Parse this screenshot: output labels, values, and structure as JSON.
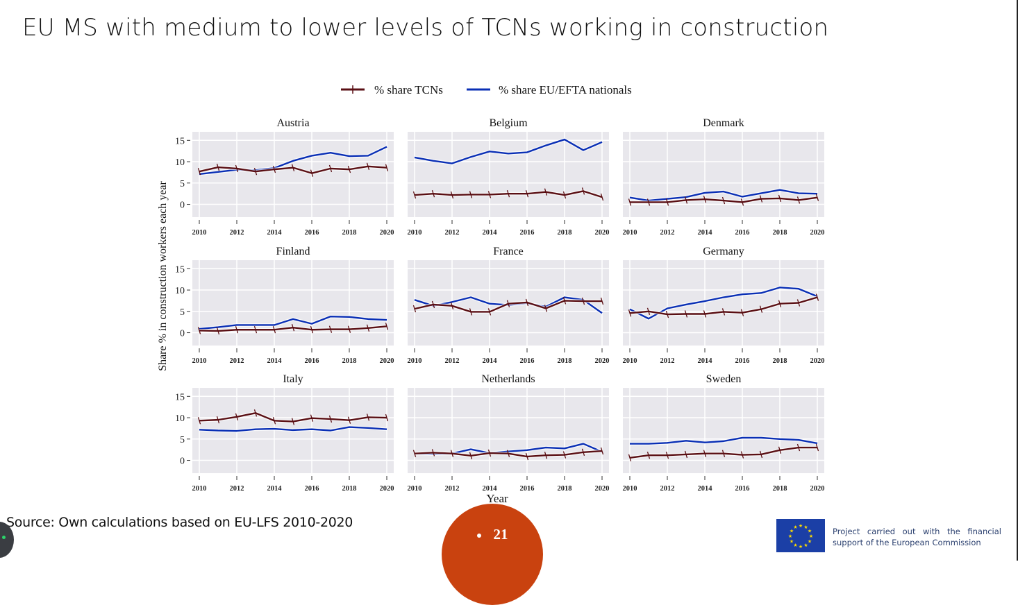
{
  "slide": {
    "title": "EU MS with medium to lower levels of TCNs working in construction",
    "source": "Source: Own calculations based on EU-LFS 2010-2020",
    "page_number": "21",
    "funding_text": "Project carried out with the financial support of the European Commission",
    "colors": {
      "page_badge": "#c9420f",
      "eu_flag": "#1b3fa6",
      "eu_stars": "#ffdd00"
    }
  },
  "chart_data": {
    "type": "line",
    "layout": "small-multiples 3x3",
    "xlabel": "Year",
    "ylabel": "Share % in construction workers each year",
    "x": [
      2010,
      2011,
      2012,
      2013,
      2014,
      2015,
      2016,
      2017,
      2018,
      2019,
      2020
    ],
    "x_ticks": [
      "2010",
      "2012",
      "2014",
      "2016",
      "2018",
      "2020"
    ],
    "y_ticks": [
      "0",
      "5",
      "10",
      "15"
    ],
    "ylim": [
      -3,
      17
    ],
    "grid": true,
    "legend": {
      "placement": "top-center",
      "entries": [
        {
          "key": "tcn",
          "label": "% share TCNs",
          "color": "#5a0f14",
          "marker": "+"
        },
        {
          "key": "eu",
          "label": "% share EU/EFTA nationals",
          "color": "#0a2fb5",
          "marker": "none"
        }
      ]
    },
    "panels": [
      {
        "title": "Austria",
        "tcn": [
          7.7,
          8.7,
          8.4,
          7.7,
          8.2,
          8.6,
          7.3,
          8.4,
          8.2,
          8.9,
          8.6
        ],
        "eu": [
          7.1,
          7.6,
          8.1,
          8.0,
          8.5,
          10.2,
          11.4,
          12.1,
          11.3,
          11.4,
          13.5
        ]
      },
      {
        "title": "Belgium",
        "tcn": [
          2.2,
          2.5,
          2.2,
          2.3,
          2.3,
          2.5,
          2.5,
          2.9,
          2.2,
          3.1,
          1.7
        ],
        "eu": [
          11.0,
          10.2,
          9.6,
          11.1,
          12.4,
          11.9,
          12.2,
          13.8,
          15.2,
          12.7,
          14.6
        ]
      },
      {
        "title": "Denmark",
        "tcn": [
          0.5,
          0.5,
          0.5,
          1.0,
          1.2,
          0.9,
          0.5,
          1.3,
          1.4,
          1.0,
          1.6
        ],
        "eu": [
          1.6,
          0.9,
          1.3,
          1.7,
          2.7,
          3.0,
          1.8,
          2.6,
          3.4,
          2.6,
          2.5
        ]
      },
      {
        "title": "Finland",
        "tcn": [
          0.5,
          0.4,
          0.7,
          0.7,
          0.7,
          1.2,
          0.7,
          0.8,
          0.8,
          1.1,
          1.5
        ],
        "eu": [
          0.9,
          1.3,
          1.8,
          1.8,
          1.8,
          3.2,
          2.1,
          3.8,
          3.7,
          3.2,
          3.0
        ]
      },
      {
        "title": "France",
        "tcn": [
          5.6,
          6.6,
          6.3,
          4.9,
          4.9,
          6.8,
          7.1,
          5.7,
          7.5,
          7.4,
          7.4
        ],
        "eu": [
          7.7,
          6.3,
          7.2,
          8.3,
          6.8,
          6.5,
          6.9,
          6.1,
          8.3,
          7.7,
          4.6
        ]
      },
      {
        "title": "Germany",
        "tcn": [
          4.6,
          5.0,
          4.3,
          4.4,
          4.4,
          4.9,
          4.7,
          5.5,
          6.8,
          7.0,
          8.3
        ],
        "eu": [
          5.5,
          3.3,
          5.7,
          6.6,
          7.4,
          8.3,
          9.0,
          9.3,
          10.6,
          10.3,
          8.5
        ]
      },
      {
        "title": "Italy",
        "tcn": [
          9.3,
          9.5,
          10.2,
          11.1,
          9.3,
          9.1,
          9.9,
          9.7,
          9.4,
          10.1,
          10.0
        ],
        "eu": [
          7.2,
          7.0,
          6.9,
          7.3,
          7.4,
          7.1,
          7.3,
          7.0,
          7.8,
          7.6,
          7.3
        ]
      },
      {
        "title": "Netherlands",
        "tcn": [
          1.6,
          1.8,
          1.6,
          1.1,
          1.7,
          1.6,
          0.9,
          1.2,
          1.3,
          1.9,
          2.2
        ],
        "eu": [
          1.6,
          1.5,
          1.6,
          2.6,
          1.7,
          2.1,
          2.4,
          3.0,
          2.8,
          3.9,
          2.0
        ]
      },
      {
        "title": "Sweden",
        "tcn": [
          0.6,
          1.2,
          1.2,
          1.4,
          1.6,
          1.6,
          1.3,
          1.4,
          2.4,
          3.0,
          3.0
        ],
        "eu": [
          3.9,
          3.9,
          4.1,
          4.6,
          4.2,
          4.5,
          5.3,
          5.3,
          5.0,
          4.8,
          4.0
        ]
      }
    ]
  }
}
